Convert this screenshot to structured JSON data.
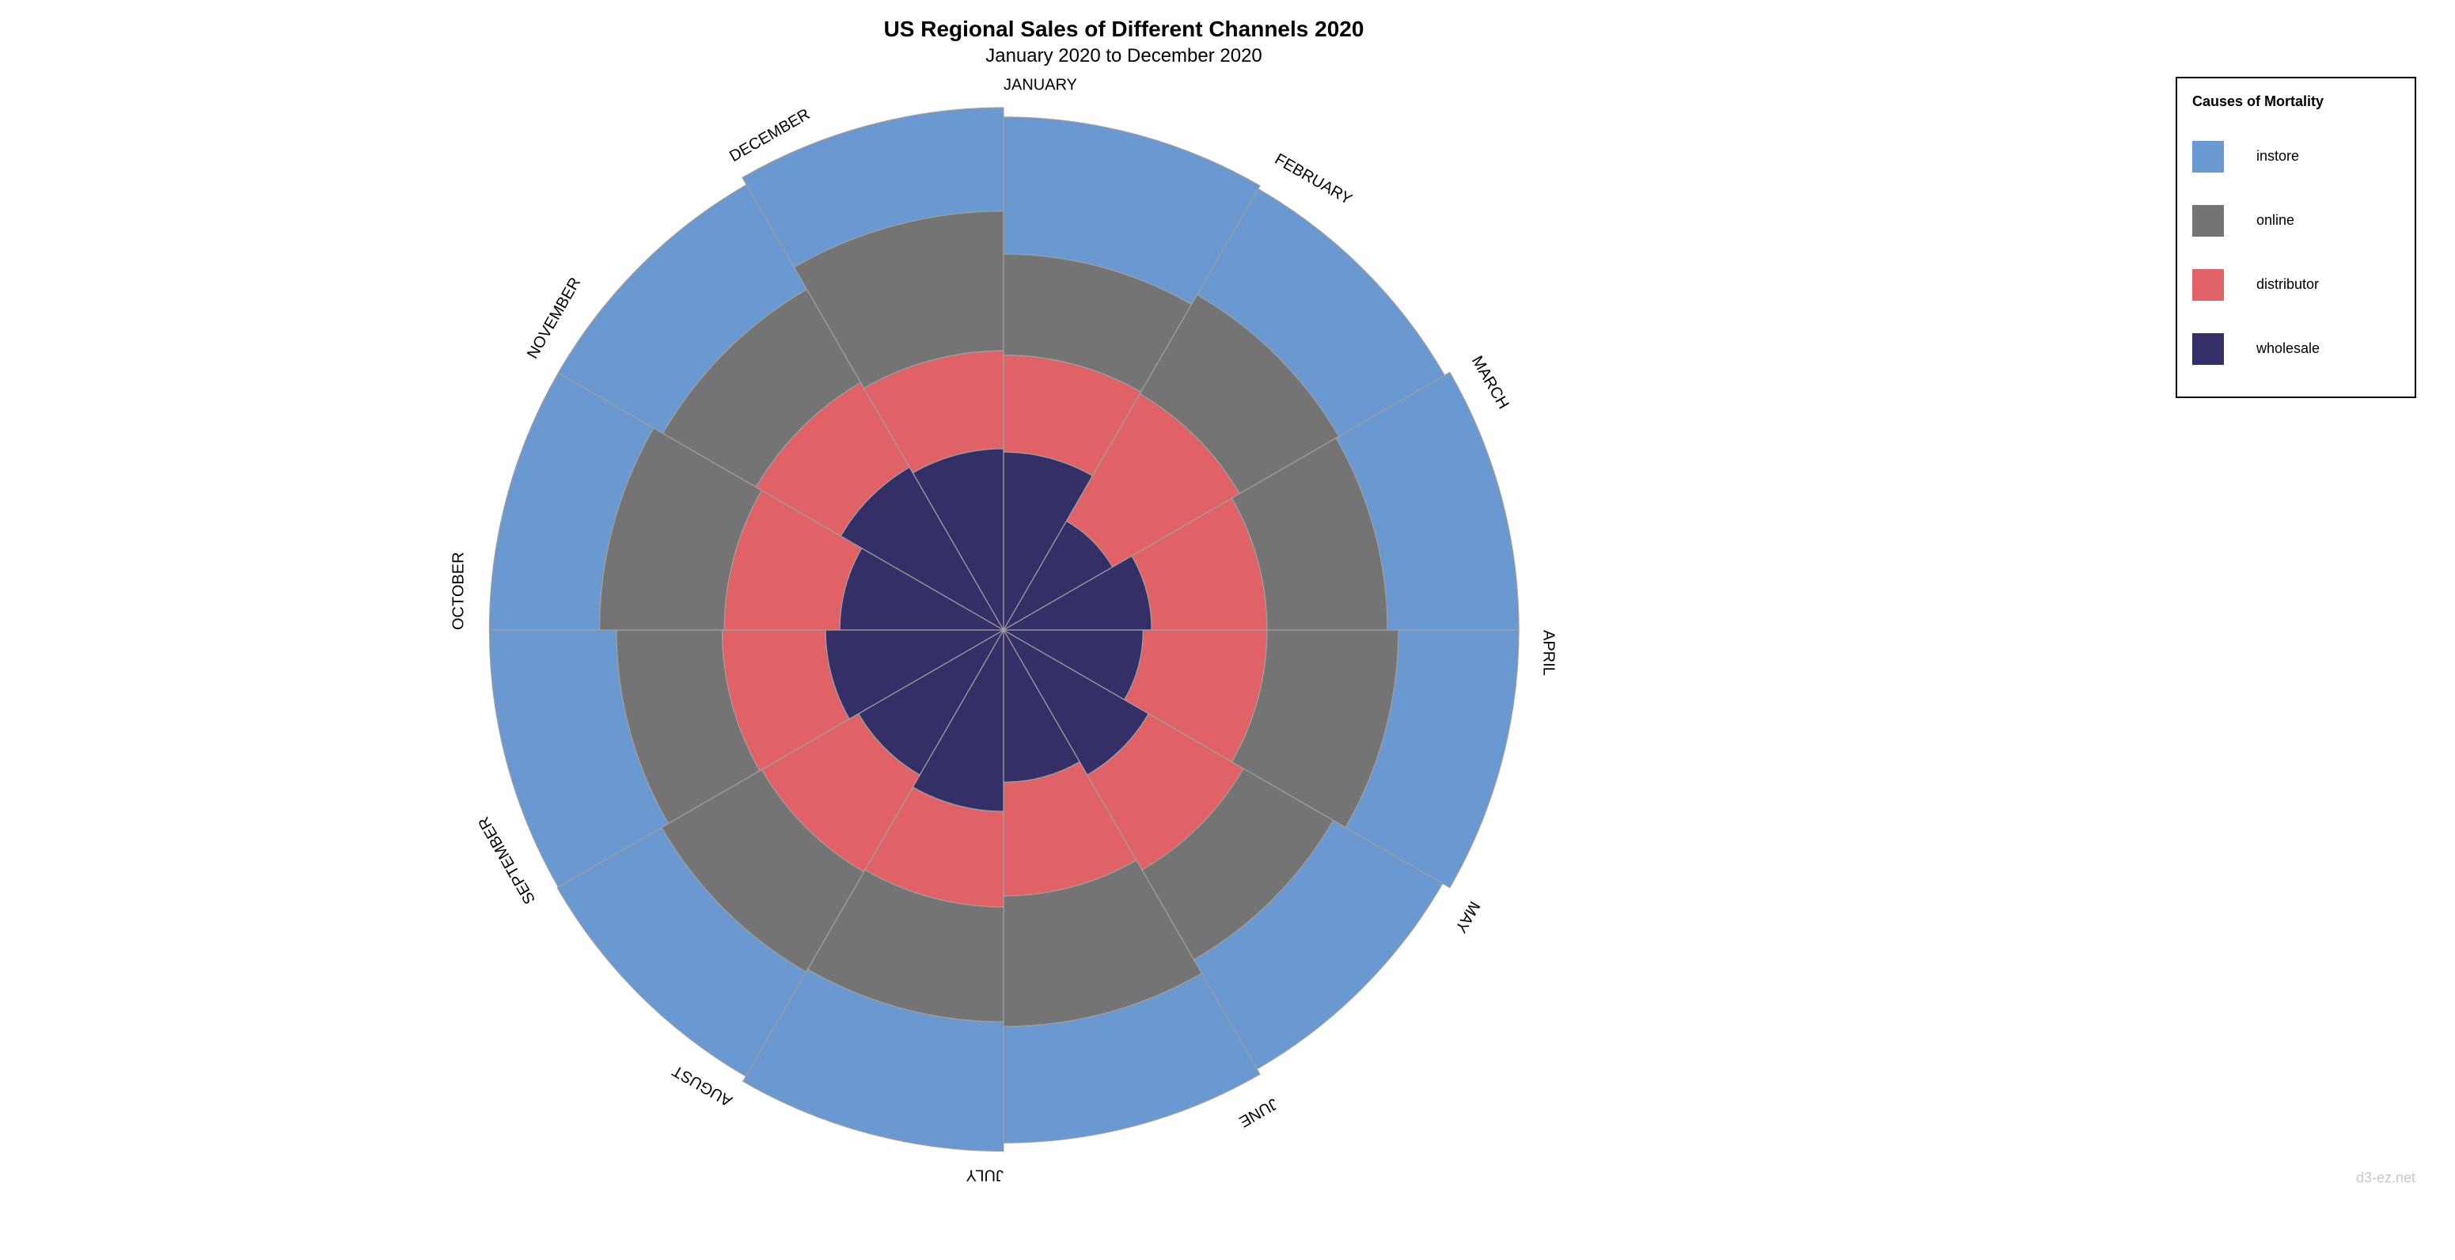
{
  "credit": "d3-ez.net",
  "chart_data": {
    "type": "polar-area",
    "title": "US Regional Sales of Different Channels 2020",
    "subtitle": "January 2020 to December 2020",
    "categories": [
      "JANUARY",
      "FEBRUARY",
      "MARCH",
      "APRIL",
      "MAY",
      "JUNE",
      "JULY",
      "AUGUST",
      "SEPTEMBER",
      "OCTOBER",
      "NOVEMBER",
      "DECEMBER"
    ],
    "series": [
      {
        "name": "instore",
        "color": "#6a98d0",
        "values": [
          100,
          90,
          97,
          90,
          92,
          87,
          97,
          90,
          94,
          83,
          90,
          80
        ]
      },
      {
        "name": "online",
        "color": "#747474",
        "values": [
          54,
          62,
          64,
          71,
          56,
          71,
          63,
          64,
          58,
          70,
          60,
          80
        ]
      },
      {
        "name": "distributor",
        "color": "#e06266",
        "values": [
          36,
          48,
          39,
          41,
          40,
          39,
          36,
          41,
          39,
          42,
          38,
          37
        ]
      },
      {
        "name": "wholesale",
        "color": "#352f67",
        "values": [
          26,
          13,
          18,
          16,
          23,
          19,
          27,
          23,
          26,
          22,
          29,
          27
        ]
      }
    ],
    "legend": {
      "title": "Causes of Mortality",
      "position": "top-right"
    }
  }
}
